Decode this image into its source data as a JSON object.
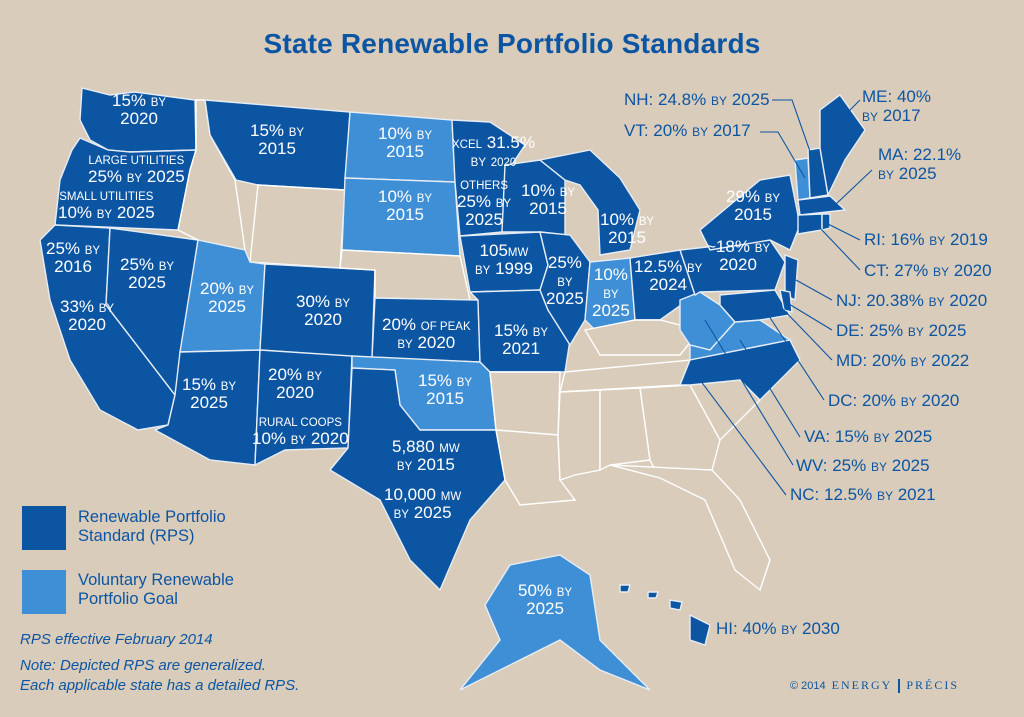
{
  "title": "State Renewable Portfolio Standards",
  "colors": {
    "rps": "#0c55a3",
    "voluntary": "#3f8fd6",
    "none": "#d9ccba",
    "text": "#0c55a3"
  },
  "legend": {
    "rps": "Renewable Portfolio Standard (RPS)",
    "rps_line1": "Renewable Portfolio",
    "rps_line2": "Standard (RPS)",
    "voluntary_line1": "Voluntary Renewable",
    "voluntary_line2": "Portfolio Goal"
  },
  "notes": {
    "effective": "RPS effective February 2014",
    "note_line1": "Note: Depicted RPS are generalized.",
    "note_line2": "Each applicable state has a detailed RPS."
  },
  "credit": {
    "year": "© 2014",
    "brand_1": "ENERGY",
    "brand_2": "PRÉCIS"
  },
  "states": {
    "wa": {
      "pct": "15%",
      "by": "BY",
      "year": "2020"
    },
    "or_large": {
      "l1": "LARGE UTILITIES",
      "pct": "25%",
      "by": "BY",
      "year": "2025"
    },
    "or_small": {
      "l1": "SMALL UTILITIES",
      "pct": "10%",
      "by": "BY",
      "year": "2025"
    },
    "mt": {
      "pct": "15%",
      "by": "BY",
      "year": "2015"
    },
    "nd": {
      "pct": "10%",
      "by": "BY",
      "year": "2015"
    },
    "sd": {
      "pct": "10%",
      "by": "BY",
      "year": "2015"
    },
    "mn_xcel": {
      "l1": "XCEL",
      "pct": "31.5%",
      "by": "BY",
      "year": "2020"
    },
    "mn_others": {
      "l1": "OTHERS",
      "pct": "25%",
      "by": "BY",
      "year": "2025"
    },
    "wi": {
      "pct": "10%",
      "by": "BY",
      "year": "2015"
    },
    "mi": {
      "pct": "10%",
      "by": "BY",
      "year": "2015"
    },
    "ca_n": {
      "pct": "25%",
      "by": "BY",
      "year": "2016"
    },
    "ca_s": {
      "pct": "33%",
      "by": "BY",
      "year": "2020"
    },
    "nv": {
      "pct": "25%",
      "by": "BY",
      "year": "2025"
    },
    "ut": {
      "pct": "20%",
      "by": "BY",
      "year": "2025"
    },
    "co": {
      "pct": "30%",
      "by": "BY",
      "year": "2020"
    },
    "ks": {
      "pct": "20%",
      "of_peak": "OF PEAK",
      "by": "BY",
      "year": "2020"
    },
    "ia": {
      "pct": "105",
      "mw": "MW",
      "by": "BY",
      "year": "1999"
    },
    "il": {
      "pct": "25%",
      "by": "BY",
      "year": "2025"
    },
    "in": {
      "pct": "10%",
      "by": "BY",
      "year": "2025"
    },
    "oh": {
      "pct": "12.5%",
      "by": "BY",
      "year": "2024"
    },
    "pa": {
      "pct": "~18%",
      "by": "BY",
      "year": "2020"
    },
    "ny": {
      "pct": "29%",
      "by": "BY",
      "year": "2015"
    },
    "mo": {
      "pct": "15%",
      "by": "BY",
      "year": "2021"
    },
    "az": {
      "pct": "15%",
      "by": "BY",
      "year": "2025"
    },
    "nm": {
      "pct": "20%",
      "by": "BY",
      "year": "2020"
    },
    "nm_coops": {
      "l1": "RURAL COOPS",
      "pct": "10%",
      "by": "BY",
      "year": "2020"
    },
    "ok": {
      "pct": "15%",
      "by": "BY",
      "year": "2015"
    },
    "tx_a": {
      "pct": "5,880",
      "mw": "MW",
      "by": "BY",
      "year": "2015"
    },
    "tx_b": {
      "pct": "10,000",
      "mw": "MW",
      "by": "BY",
      "year": "2025"
    },
    "ak": {
      "pct": "50%",
      "by": "BY",
      "year": "2025"
    }
  },
  "callouts": {
    "nh": {
      "name": "NH:",
      "pct": "24.8%",
      "by": "BY",
      "year": "2025"
    },
    "vt": {
      "name": "VT:",
      "pct": "20%",
      "by": "BY",
      "year": "2017"
    },
    "me": {
      "name": "ME:",
      "pct": "40%",
      "by": "BY",
      "year": "2017"
    },
    "ma": {
      "name": "MA:",
      "pct": "22.1%",
      "by": "BY",
      "year": "2025"
    },
    "ri": {
      "name": "RI:",
      "pct": "16%",
      "by": "BY",
      "year": "2019"
    },
    "ct": {
      "name": "CT:",
      "pct": "27%",
      "by": "BY",
      "year": "2020"
    },
    "nj": {
      "name": "NJ:",
      "pct": "20.38%",
      "by": "BY",
      "year": "2020"
    },
    "de": {
      "name": "DE:",
      "pct": "25%",
      "by": "BY",
      "year": "2025"
    },
    "md": {
      "name": "MD:",
      "pct": "20%",
      "by": "BY",
      "year": "2022"
    },
    "dc": {
      "name": "DC:",
      "pct": "20%",
      "by": "BY",
      "year": "2020"
    },
    "va": {
      "name": "VA:",
      "pct": "15%",
      "by": "BY",
      "year": "2025"
    },
    "wv": {
      "name": "WV:",
      "pct": "25%",
      "by": "BY",
      "year": "2025"
    },
    "nc": {
      "name": "NC:",
      "pct": "12.5%",
      "by": "BY",
      "year": "2021"
    },
    "hi": {
      "name": "HI:",
      "pct": "40%",
      "by": "BY",
      "year": "2030"
    }
  }
}
